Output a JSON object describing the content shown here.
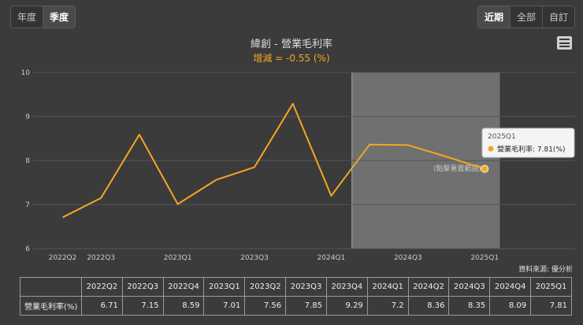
{
  "period_tabs": [
    {
      "label": "年度",
      "active": false
    },
    {
      "label": "季度",
      "active": true
    }
  ],
  "range_tabs": [
    {
      "label": "近期",
      "active": true
    },
    {
      "label": "全部",
      "active": false
    },
    {
      "label": "自訂",
      "active": false
    }
  ],
  "source": "資料來源: 優分析",
  "colors": {
    "line": "#f5a623",
    "background": "#3b3b3b",
    "grid": "#555555",
    "highlight": "#7a7a7a"
  },
  "chart_data": {
    "type": "line",
    "title": "緯創 - 營業毛利率",
    "subtitle": "增減 = -0.55 (%)",
    "categories": [
      "2022Q2",
      "2022Q3",
      "2022Q4",
      "2023Q1",
      "2023Q2",
      "2023Q3",
      "2023Q4",
      "2024Q1",
      "2024Q2",
      "2024Q3",
      "2024Q4",
      "2025Q1"
    ],
    "x_tick_labels": [
      "2022Q2",
      "2022Q3",
      "2023Q1",
      "2023Q3",
      "2024Q1",
      "2024Q3",
      "2025Q1"
    ],
    "series": [
      {
        "name": "營業毛利率",
        "values": [
          6.71,
          7.15,
          8.59,
          7.01,
          7.56,
          7.85,
          9.29,
          7.2,
          8.36,
          8.35,
          8.09,
          7.81
        ]
      }
    ],
    "ylim": [
      6,
      10
    ],
    "y_ticks": [
      6,
      7,
      8,
      9,
      10
    ],
    "grid": true,
    "highlight_band": {
      "from": "2024Q2",
      "to": "2025Q1",
      "label": "(點擊重置範圍)"
    },
    "tooltip": {
      "title": "2025Q1",
      "label": "營業毛利率: 7.81(%)"
    }
  },
  "table": {
    "row_header": "營業毛利率(%)",
    "values": [
      "6.71",
      "7.15",
      "8.59",
      "7.01",
      "7.56",
      "7.85",
      "9.29",
      "7.2",
      "8.36",
      "8.35",
      "8.09",
      "7.81"
    ]
  }
}
